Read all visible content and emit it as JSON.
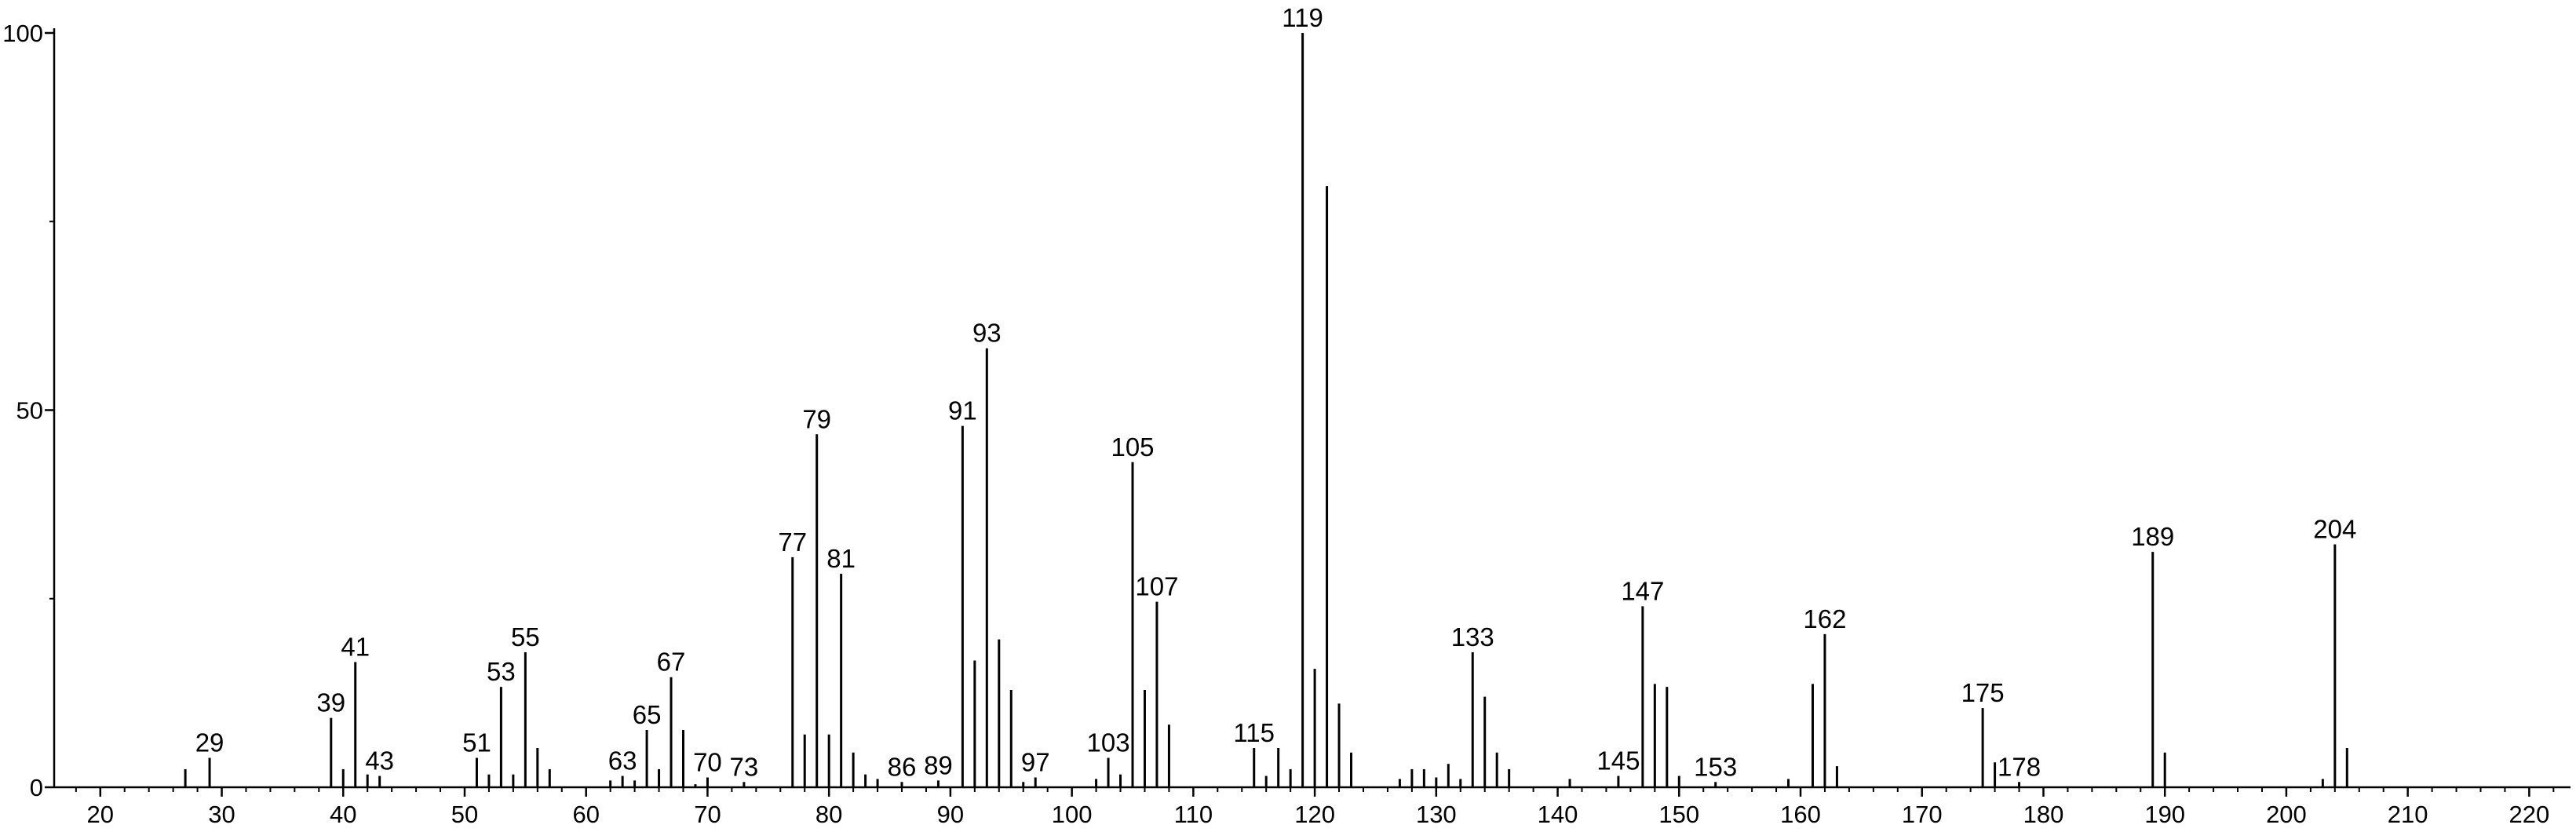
{
  "chart_data": {
    "type": "stick",
    "x": [
      27,
      29,
      39,
      40,
      41,
      42,
      43,
      51,
      52,
      53,
      54,
      55,
      56,
      57,
      62,
      63,
      64,
      65,
      66,
      67,
      68,
      69,
      70,
      73,
      77,
      78,
      79,
      80,
      81,
      82,
      83,
      84,
      86,
      89,
      91,
      92,
      93,
      94,
      95,
      96,
      97,
      102,
      103,
      104,
      105,
      106,
      107,
      108,
      115,
      116,
      117,
      118,
      119,
      120,
      121,
      122,
      123,
      127,
      128,
      129,
      130,
      131,
      132,
      133,
      134,
      135,
      136,
      141,
      145,
      147,
      148,
      149,
      150,
      153,
      159,
      161,
      162,
      163,
      175,
      176,
      178,
      189,
      190,
      203,
      204,
      205
    ],
    "values": [
      2.4,
      3.9,
      9.2,
      2.4,
      16.6,
      1.7,
      1.5,
      3.9,
      1.7,
      13.3,
      1.7,
      17.9,
      5.2,
      2.4,
      0.9,
      1.5,
      0.9,
      7.6,
      2.4,
      14.6,
      7.6,
      0.4,
      1.3,
      0.7,
      30.5,
      7.0,
      46.8,
      7.0,
      28.3,
      4.6,
      1.7,
      1.1,
      0.7,
      0.9,
      47.9,
      16.8,
      58.2,
      19.6,
      12.9,
      0.7,
      1.3,
      1.1,
      3.9,
      1.7,
      43.1,
      12.9,
      24.6,
      8.3,
      5.2,
      1.5,
      5.2,
      2.4,
      100,
      15.7,
      79.7,
      11.1,
      4.6,
      1.1,
      2.4,
      2.4,
      1.3,
      3.1,
      1.1,
      17.9,
      12.0,
      4.6,
      2.4,
      1.1,
      1.5,
      24.0,
      13.7,
      13.3,
      1.5,
      0.7,
      1.1,
      13.7,
      20.3,
      2.8,
      10.5,
      3.3,
      0.7,
      31.2,
      4.6,
      1.1,
      32.2,
      5.2
    ],
    "labeled": [
      false,
      true,
      true,
      false,
      true,
      false,
      true,
      true,
      false,
      true,
      false,
      true,
      false,
      false,
      false,
      true,
      false,
      true,
      false,
      true,
      false,
      false,
      true,
      true,
      true,
      false,
      true,
      false,
      true,
      false,
      false,
      false,
      true,
      true,
      true,
      false,
      true,
      false,
      false,
      false,
      true,
      false,
      true,
      false,
      true,
      false,
      true,
      false,
      true,
      false,
      false,
      false,
      true,
      false,
      false,
      false,
      false,
      false,
      false,
      false,
      false,
      false,
      false,
      true,
      false,
      false,
      false,
      false,
      true,
      true,
      false,
      false,
      false,
      true,
      false,
      false,
      true,
      false,
      true,
      false,
      true,
      true,
      false,
      false,
      true,
      false
    ],
    "color": "#000000",
    "xlim": [
      16.2,
      223.4
    ],
    "xticks": [
      20,
      30,
      40,
      50,
      60,
      70,
      80,
      90,
      100,
      110,
      120,
      130,
      140,
      150,
      160,
      170,
      180,
      190,
      200,
      210,
      220
    ],
    "x_minor_step": 2,
    "ylim": [
      0,
      100
    ],
    "yticks": [
      0,
      50,
      100
    ],
    "y_minor_step": 25
  }
}
